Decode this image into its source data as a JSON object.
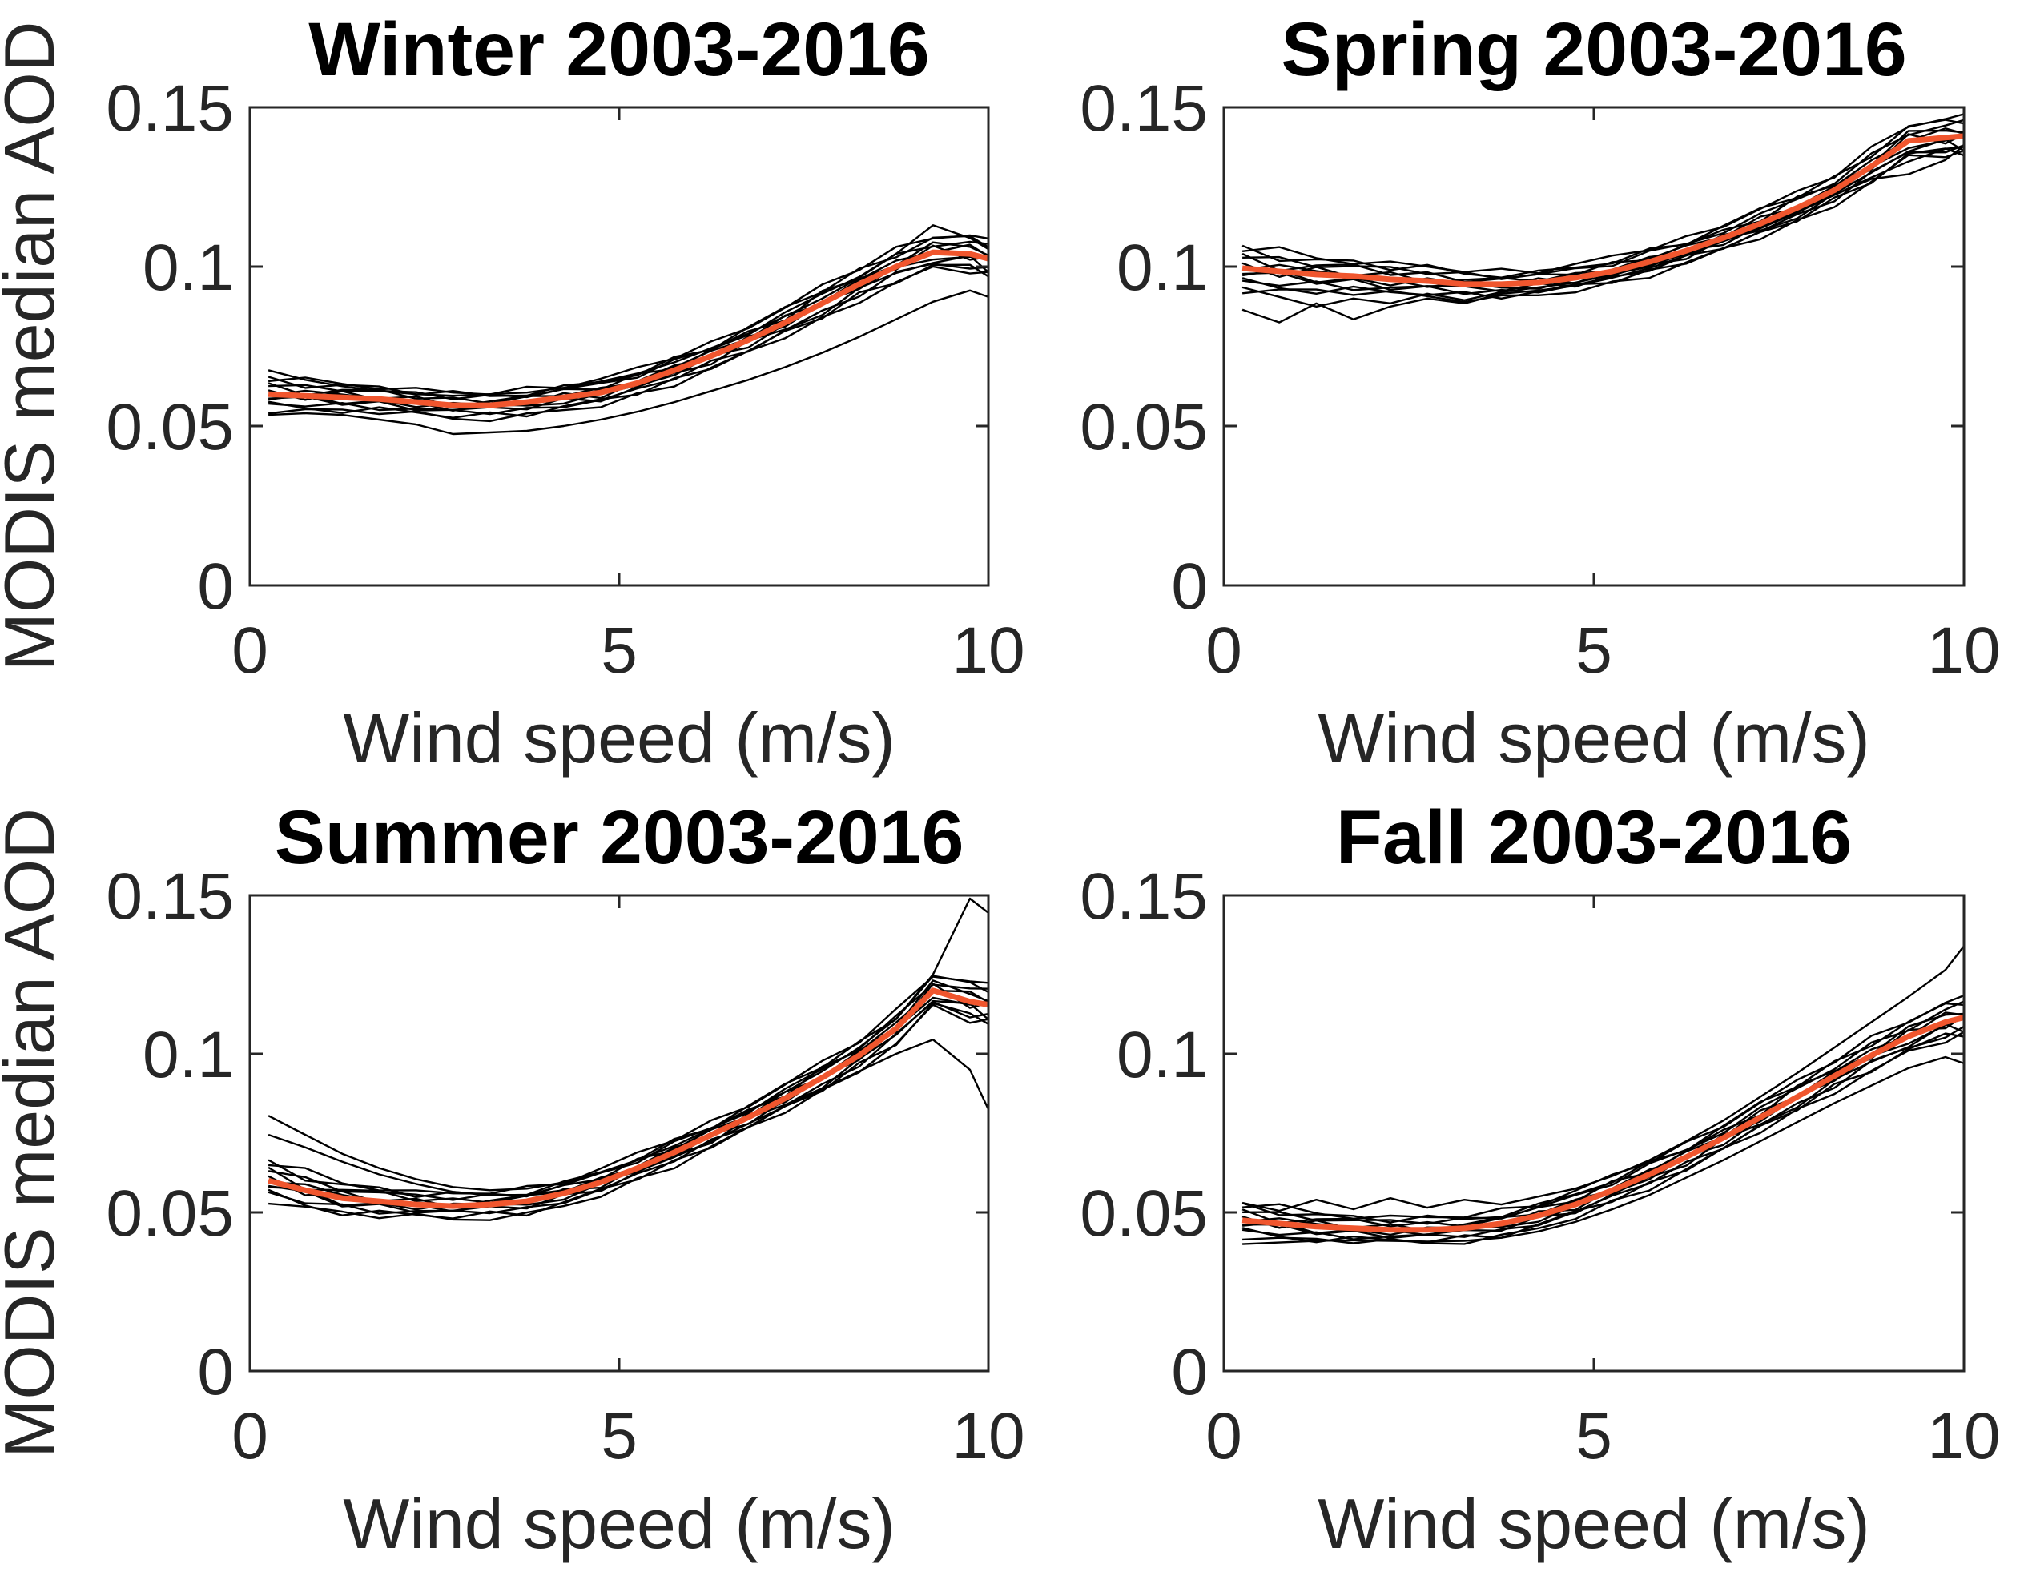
{
  "figure": {
    "background": "#ffffff",
    "axis_color": "#262626",
    "year_line_color": "#000000",
    "median_line_color": "#F0562E",
    "xlabel": "Wind speed (m/s)",
    "ylabel": "MODIS median AOD",
    "xticklabels": [
      "0",
      "5",
      "10"
    ],
    "yticklabels": [
      "0",
      "0.05",
      "0.1",
      "0.15"
    ]
  },
  "chart_data": [
    {
      "type": "line",
      "title": "Winter 2003-2016",
      "xlabel": "Wind speed (m/s)",
      "ylabel": "MODIS median AOD",
      "xlim": [
        0,
        10
      ],
      "ylim": [
        0,
        0.15
      ],
      "xticks": [
        0,
        5,
        10
      ],
      "yticks": [
        0,
        0.05,
        0.1,
        0.15
      ],
      "legend": "none",
      "grid": false,
      "x": [
        0.25,
        0.75,
        1.25,
        1.75,
        2.25,
        2.75,
        3.25,
        3.75,
        4.25,
        4.75,
        5.25,
        5.75,
        6.25,
        6.75,
        7.25,
        7.75,
        8.25,
        8.75,
        9.25,
        9.75,
        10
      ],
      "median": [
        0.06,
        0.0595,
        0.059,
        0.0585,
        0.0575,
        0.0565,
        0.0565,
        0.0575,
        0.059,
        0.0605,
        0.0635,
        0.0675,
        0.072,
        0.077,
        0.0825,
        0.0885,
        0.0945,
        0.1,
        0.1045,
        0.104,
        0.1025
      ],
      "halfwidth": [
        0.005,
        0.0045,
        0.0045,
        0.004,
        0.004,
        0.004,
        0.004,
        0.004,
        0.004,
        0.004,
        0.004,
        0.004,
        0.004,
        0.0045,
        0.0045,
        0.005,
        0.005,
        0.005,
        0.0055,
        0.0055,
        0.0055
      ],
      "outlier_lines": [
        [
          0.0675,
          0.0645,
          0.0625,
          0.061,
          0.06,
          0.0595,
          0.06,
          0.0605,
          0.062,
          0.064,
          0.0665,
          0.07,
          0.0745,
          0.079,
          0.0845,
          0.09,
          0.0965,
          0.104,
          0.113,
          0.109,
          0.1055
        ],
        [
          0.0535,
          0.054,
          0.0535,
          0.052,
          0.0505,
          0.0475,
          0.048,
          0.0485,
          0.05,
          0.052,
          0.0545,
          0.0575,
          0.061,
          0.0645,
          0.0685,
          0.073,
          0.078,
          0.0835,
          0.089,
          0.0925,
          0.0905
        ]
      ]
    },
    {
      "type": "line",
      "title": "Spring 2003-2016",
      "xlabel": "Wind speed (m/s)",
      "ylabel": "",
      "xlim": [
        0,
        10
      ],
      "ylim": [
        0,
        0.15
      ],
      "xticks": [
        0,
        5,
        10
      ],
      "yticks": [
        0,
        0.05,
        0.1,
        0.15
      ],
      "legend": "none",
      "grid": false,
      "x": [
        0.25,
        0.75,
        1.25,
        1.75,
        2.25,
        2.75,
        3.25,
        3.75,
        4.25,
        4.75,
        5.25,
        5.75,
        6.25,
        6.75,
        7.25,
        7.75,
        8.25,
        8.75,
        9.25,
        9.75,
        10
      ],
      "median": [
        0.0995,
        0.0985,
        0.0975,
        0.097,
        0.096,
        0.0955,
        0.0945,
        0.0945,
        0.095,
        0.0965,
        0.0985,
        0.1015,
        0.105,
        0.109,
        0.1135,
        0.1185,
        0.124,
        0.1315,
        0.1395,
        0.1405,
        0.141
      ],
      "halfwidth": [
        0.0065,
        0.006,
        0.0055,
        0.005,
        0.005,
        0.0045,
        0.0045,
        0.004,
        0.004,
        0.004,
        0.004,
        0.004,
        0.004,
        0.0042,
        0.0045,
        0.0045,
        0.0045,
        0.005,
        0.0055,
        0.0055,
        0.006
      ],
      "outlier_lines": [
        [
          0.0865,
          0.0825,
          0.0885,
          0.0835,
          0.0875,
          0.09,
          0.0885,
          0.0915,
          0.0925,
          0.094,
          0.0965,
          0.0995,
          0.1035,
          0.108,
          0.1125,
          0.1175,
          0.1225,
          0.128,
          0.133,
          0.137,
          0.1375
        ],
        [
          0.0935,
          0.0905,
          0.0875,
          0.09,
          0.0885,
          0.0915,
          0.0895,
          0.092,
          0.0935,
          0.095,
          0.0975,
          0.1005,
          0.104,
          0.108,
          0.112,
          0.117,
          0.1225,
          0.1275,
          0.129,
          0.1335,
          0.138
        ]
      ]
    },
    {
      "type": "line",
      "title": "Summer 2003-2016",
      "xlabel": "Wind speed (m/s)",
      "ylabel": "MODIS median AOD",
      "xlim": [
        0,
        10
      ],
      "ylim": [
        0,
        0.15
      ],
      "xticks": [
        0,
        5,
        10
      ],
      "yticks": [
        0,
        0.05,
        0.1,
        0.15
      ],
      "legend": "none",
      "grid": false,
      "x": [
        0.25,
        0.75,
        1.25,
        1.75,
        2.25,
        2.75,
        3.25,
        3.75,
        4.25,
        4.75,
        5.25,
        5.75,
        6.25,
        6.75,
        7.25,
        7.75,
        8.25,
        8.75,
        9.25,
        9.75,
        10
      ],
      "median": [
        0.06,
        0.057,
        0.0545,
        0.0535,
        0.0525,
        0.052,
        0.0525,
        0.0535,
        0.056,
        0.0595,
        0.064,
        0.069,
        0.0745,
        0.08,
        0.086,
        0.0925,
        0.0995,
        0.108,
        0.12,
        0.1165,
        0.1155
      ],
      "halfwidth": [
        0.006,
        0.0055,
        0.005,
        0.0045,
        0.004,
        0.004,
        0.004,
        0.004,
        0.004,
        0.004,
        0.004,
        0.004,
        0.004,
        0.004,
        0.0042,
        0.0045,
        0.0045,
        0.005,
        0.0055,
        0.006,
        0.006
      ],
      "outlier_lines": [
        [
          0.0805,
          0.0745,
          0.0685,
          0.064,
          0.0605,
          0.058,
          0.057,
          0.0575,
          0.0595,
          0.0625,
          0.0665,
          0.071,
          0.0765,
          0.082,
          0.088,
          0.0945,
          0.102,
          0.111,
          0.125,
          0.149,
          0.1445
        ],
        [
          0.0745,
          0.0705,
          0.066,
          0.062,
          0.059,
          0.0565,
          0.0555,
          0.0555,
          0.057,
          0.0595,
          0.063,
          0.0675,
          0.0725,
          0.078,
          0.0835,
          0.089,
          0.0945,
          0.1,
          0.1045,
          0.095,
          0.0825
        ]
      ]
    },
    {
      "type": "line",
      "title": "Fall 2003-2016",
      "xlabel": "Wind speed (m/s)",
      "ylabel": "",
      "xlim": [
        0,
        10
      ],
      "ylim": [
        0,
        0.15
      ],
      "xticks": [
        0,
        5,
        10
      ],
      "yticks": [
        0,
        0.05,
        0.1,
        0.15
      ],
      "legend": "none",
      "grid": false,
      "x": [
        0.25,
        0.75,
        1.25,
        1.75,
        2.25,
        2.75,
        3.25,
        3.75,
        4.25,
        4.75,
        5.25,
        5.75,
        6.25,
        6.75,
        7.25,
        7.75,
        8.25,
        8.75,
        9.25,
        9.75,
        10
      ],
      "median": [
        0.0475,
        0.0465,
        0.0455,
        0.045,
        0.0445,
        0.0445,
        0.045,
        0.0465,
        0.049,
        0.0525,
        0.057,
        0.062,
        0.0675,
        0.0735,
        0.08,
        0.0865,
        0.093,
        0.0995,
        0.1055,
        0.11,
        0.1115
      ],
      "halfwidth": [
        0.005,
        0.0048,
        0.0045,
        0.004,
        0.004,
        0.004,
        0.004,
        0.004,
        0.004,
        0.004,
        0.004,
        0.004,
        0.0042,
        0.0042,
        0.0045,
        0.0045,
        0.0048,
        0.005,
        0.0055,
        0.0058,
        0.006
      ],
      "outlier_lines": [
        [
          0.053,
          0.0505,
          0.054,
          0.051,
          0.0545,
          0.0515,
          0.054,
          0.0525,
          0.055,
          0.0575,
          0.0615,
          0.0665,
          0.0725,
          0.079,
          0.0865,
          0.094,
          0.102,
          0.11,
          0.118,
          0.1265,
          0.134
        ],
        [
          0.04,
          0.0405,
          0.041,
          0.0412,
          0.041,
          0.0408,
          0.041,
          0.042,
          0.044,
          0.047,
          0.051,
          0.0555,
          0.061,
          0.0665,
          0.0725,
          0.0785,
          0.0845,
          0.09,
          0.0955,
          0.099,
          0.097
        ]
      ]
    }
  ],
  "year_line_params": [
    [
      -1.0,
      0.5,
      3
    ],
    [
      -0.8,
      0.6,
      7
    ],
    [
      -0.6,
      0.5,
      11
    ],
    [
      -0.4,
      0.7,
      15
    ],
    [
      -0.2,
      0.6,
      1
    ],
    [
      0.0,
      0.8,
      5
    ],
    [
      0.2,
      0.6,
      9
    ],
    [
      0.4,
      0.7,
      13
    ],
    [
      0.6,
      0.5,
      17
    ],
    [
      0.8,
      0.6,
      2
    ],
    [
      1.0,
      0.5,
      6
    ]
  ],
  "wiggle": [
    0.6,
    -0.4,
    0.8,
    -0.7,
    0.2,
    0.5,
    -0.6,
    0.9,
    -0.2,
    -0.8,
    0.4,
    0,
    -0.5,
    0.7,
    -0.9,
    0.3,
    0.8,
    -0.3,
    0.5,
    -0.6,
    0.1
  ]
}
